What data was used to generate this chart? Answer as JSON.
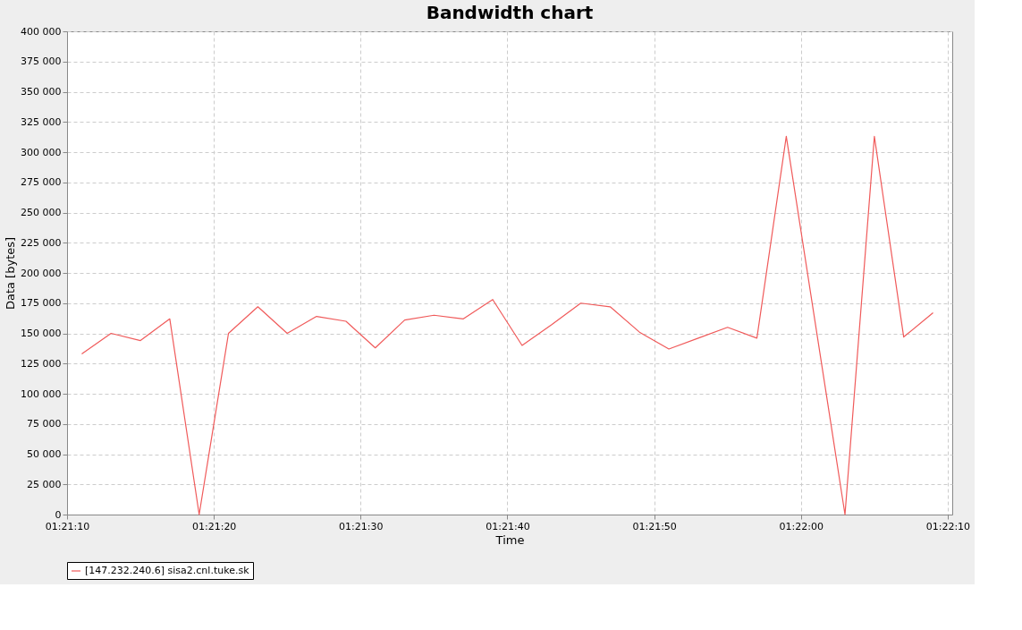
{
  "chart_data": {
    "type": "line",
    "title": "Bandwidth chart",
    "xlabel": "Time",
    "ylabel": "Data [bytes]",
    "x": [
      1.353056,
      1.353611,
      1.354167,
      1.354722,
      1.355278,
      1.355833,
      1.356389,
      1.356944,
      1.3575,
      1.358056,
      1.358611,
      1.359167,
      1.359722,
      1.360278,
      1.360833,
      1.361389,
      1.361944,
      1.3625,
      1.363056,
      1.363611,
      1.364167,
      1.364722,
      1.365278,
      1.365833,
      1.366389,
      1.3675,
      1.368056,
      1.368611,
      1.369167
    ],
    "series": [
      {
        "name": "[147.232.240.6] sisa2.cnl.tuke.sk",
        "color": "#f05a5a",
        "values": [
          133000,
          150000,
          144000,
          162000,
          0,
          150000,
          172000,
          150000,
          164000,
          160000,
          138000,
          161000,
          165000,
          162000,
          178000,
          140000,
          157000,
          175000,
          172000,
          151000,
          137000,
          146000,
          155000,
          146000,
          313000,
          0,
          313000,
          147000,
          167000
        ]
      }
    ],
    "xlim": [
      1.352778,
      1.36953
    ],
    "xticks": [
      {
        "value": 1.352778,
        "label": "01:21:10"
      },
      {
        "value": 1.355556,
        "label": "01:21:20"
      },
      {
        "value": 1.358333,
        "label": "01:21:30"
      },
      {
        "value": 1.361111,
        "label": "01:21:40"
      },
      {
        "value": 1.363889,
        "label": "01:21:50"
      },
      {
        "value": 1.366667,
        "label": "01:22:00"
      },
      {
        "value": 1.369444,
        "label": "01:22:10"
      }
    ],
    "ylim": [
      0,
      400000
    ],
    "yticks": [
      0,
      {
        "value": 25000,
        "label": "25 000"
      },
      {
        "value": 50000,
        "label": "50 000"
      },
      {
        "value": 75000,
        "label": "75 000"
      },
      {
        "value": 100000,
        "label": "100 000"
      },
      {
        "value": 125000,
        "label": "125 000"
      },
      {
        "value": 150000,
        "label": "150 000"
      },
      {
        "value": 175000,
        "label": "175 000"
      },
      {
        "value": 200000,
        "label": "200 000"
      },
      {
        "value": 225000,
        "label": "225 000"
      },
      {
        "value": 250000,
        "label": "250 000"
      },
      {
        "value": 275000,
        "label": "275 000"
      },
      {
        "value": 300000,
        "label": "300 000"
      },
      {
        "value": 325000,
        "label": "325 000"
      },
      {
        "value": 350000,
        "label": "350 000"
      },
      {
        "value": 375000,
        "label": "375 000"
      },
      {
        "value": 400000,
        "label": "400 000"
      }
    ],
    "grid": true,
    "legend": "bottom",
    "marker": "none",
    "line_style": "solid"
  }
}
